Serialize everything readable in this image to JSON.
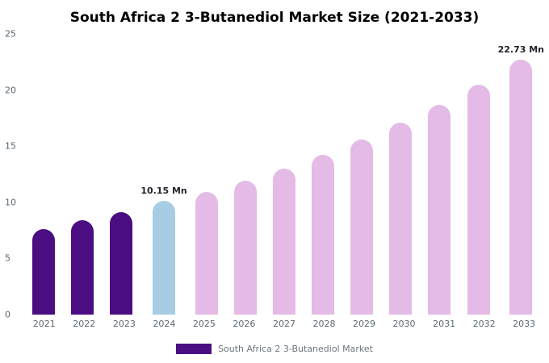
{
  "chart_data": {
    "type": "bar",
    "title": "South Africa 2 3-Butanediol Market Size (2021-2033)",
    "categories": [
      "2021",
      "2022",
      "2023",
      "2024",
      "2025",
      "2026",
      "2027",
      "2028",
      "2029",
      "2030",
      "2031",
      "2032",
      "2033"
    ],
    "values": [
      7.6,
      8.4,
      9.1,
      10.15,
      10.9,
      11.9,
      13.0,
      14.2,
      15.6,
      17.1,
      18.7,
      20.5,
      22.73
    ],
    "bar_labels": {
      "2024": "10.15 Mn",
      "2033": "22.73 Mn"
    },
    "ylim": [
      0,
      25
    ],
    "yticks": [
      0,
      5,
      10,
      15,
      20,
      25
    ],
    "grid": false,
    "legend_position": "bottom",
    "colors": {
      "historical": "#4a0e82",
      "current": "#a6cde3",
      "forecast": "#e4bbe6"
    },
    "color_map": [
      "historical",
      "historical",
      "historical",
      "current",
      "forecast",
      "forecast",
      "forecast",
      "forecast",
      "forecast",
      "forecast",
      "forecast",
      "forecast",
      "forecast"
    ],
    "legend": {
      "label": "South Africa 2 3-Butanediol Market",
      "swatch_color": "#4a0e82"
    }
  }
}
